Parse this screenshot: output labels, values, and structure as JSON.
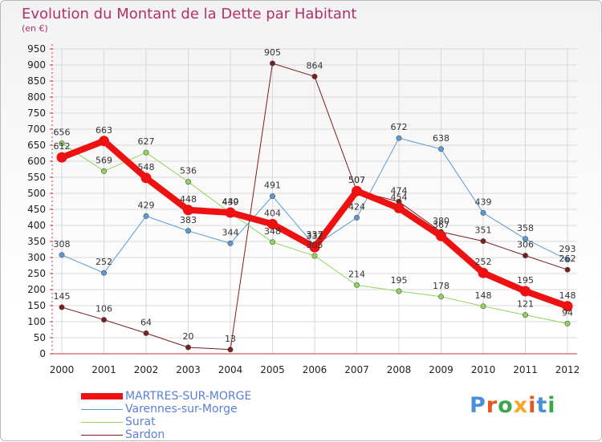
{
  "header": {
    "title": "Evolution du Montant de la Dette par Habitant",
    "subtitle": "(en €)"
  },
  "logo": {
    "text": "Proxiti",
    "colors": [
      "#4a8fd8",
      "#e8561e",
      "#3aa84a",
      "#f5a623",
      "#e8561e",
      "#4a8fd8",
      "#3aa84a"
    ]
  },
  "chart_data": {
    "type": "line",
    "x": [
      "2000",
      "2001",
      "2002",
      "2003",
      "2004",
      "2005",
      "2006",
      "2007",
      "2008",
      "2009",
      "2010",
      "2011",
      "2012"
    ],
    "ylim": [
      0,
      950
    ],
    "yticks": [
      0,
      50,
      100,
      150,
      200,
      250,
      300,
      350,
      400,
      450,
      500,
      550,
      600,
      650,
      700,
      750,
      800,
      850,
      900,
      950
    ],
    "grid": true,
    "legend_position": "bottom-left",
    "series": [
      {
        "name": "Sardon",
        "color": "#7a1e1e",
        "stroke_width": 1,
        "values": [
          145,
          106,
          64,
          20,
          13,
          905,
          864,
          507,
          474,
          380,
          351,
          306,
          262
        ]
      },
      {
        "name": "Varennes-sur-Morge",
        "color": "#5a9ad2",
        "stroke_width": 1,
        "values": [
          308,
          252,
          429,
          383,
          344,
          491,
          337,
          424,
          672,
          638,
          439,
          358,
          293
        ]
      },
      {
        "name": "Surat",
        "color": "#8fd45a",
        "stroke_width": 1,
        "values": [
          656,
          569,
          627,
          536,
          439,
          348,
          305,
          214,
          195,
          178,
          148,
          121,
          94
        ]
      },
      {
        "name": "MARTRES-SUR-MORGE",
        "color": "#ee1111",
        "stroke_width": 8,
        "values": [
          612,
          663,
          548,
          448,
          440,
          404,
          332,
          507,
          454,
          367,
          252,
          195,
          148
        ]
      }
    ],
    "legend_order": [
      "MARTRES-SUR-MORGE",
      "Varennes-sur-Morge",
      "Surat",
      "Sardon"
    ]
  }
}
